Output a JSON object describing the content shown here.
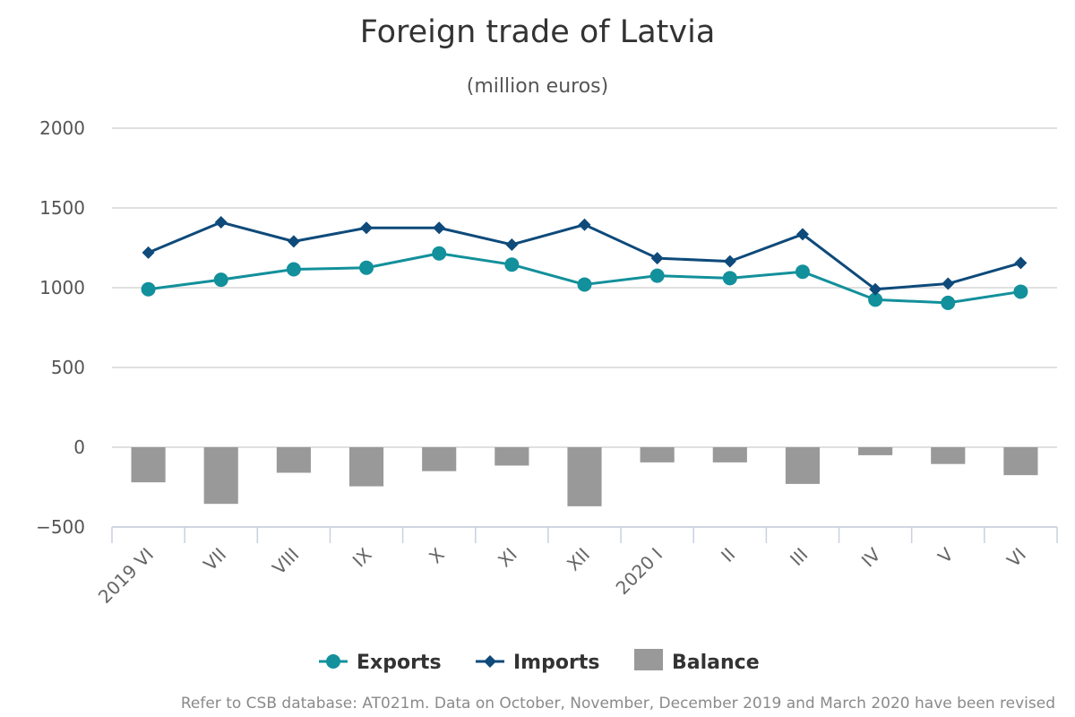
{
  "chart_data": {
    "type": "line",
    "title": "Foreign trade of Latvia",
    "subtitle": "(million euros)",
    "categories": [
      "2019 VI",
      "VII",
      "VIII",
      "IX",
      "X",
      "XI",
      "XII",
      "2020 I",
      "II",
      "III",
      "IV",
      "V",
      "VI"
    ],
    "y_ticks": [
      "2000",
      "1500",
      "1000",
      "500",
      "0",
      "−500"
    ],
    "ylim": [
      -500,
      2000
    ],
    "grid": true,
    "legend_position": "bottom",
    "series": [
      {
        "name": "Exports",
        "kind": "line",
        "marker": "circle",
        "color": "#12909b",
        "values": [
          990,
          1050,
          1115,
          1125,
          1215,
          1145,
          1020,
          1075,
          1060,
          1100,
          925,
          905,
          975
        ]
      },
      {
        "name": "Imports",
        "kind": "line",
        "marker": "diamond",
        "color": "#0e4a7a",
        "values": [
          1220,
          1410,
          1290,
          1375,
          1375,
          1270,
          1395,
          1185,
          1165,
          1335,
          990,
          1025,
          1155
        ]
      },
      {
        "name": "Balance",
        "kind": "bar",
        "color": "#999999",
        "values": [
          -220,
          -355,
          -160,
          -245,
          -150,
          -115,
          -370,
          -95,
          -95,
          -230,
          -50,
          -105,
          -175
        ]
      }
    ],
    "footnote": "Refer to CSB database: AT021m. Data on October, November, December 2019 and March 2020 have been revised"
  }
}
